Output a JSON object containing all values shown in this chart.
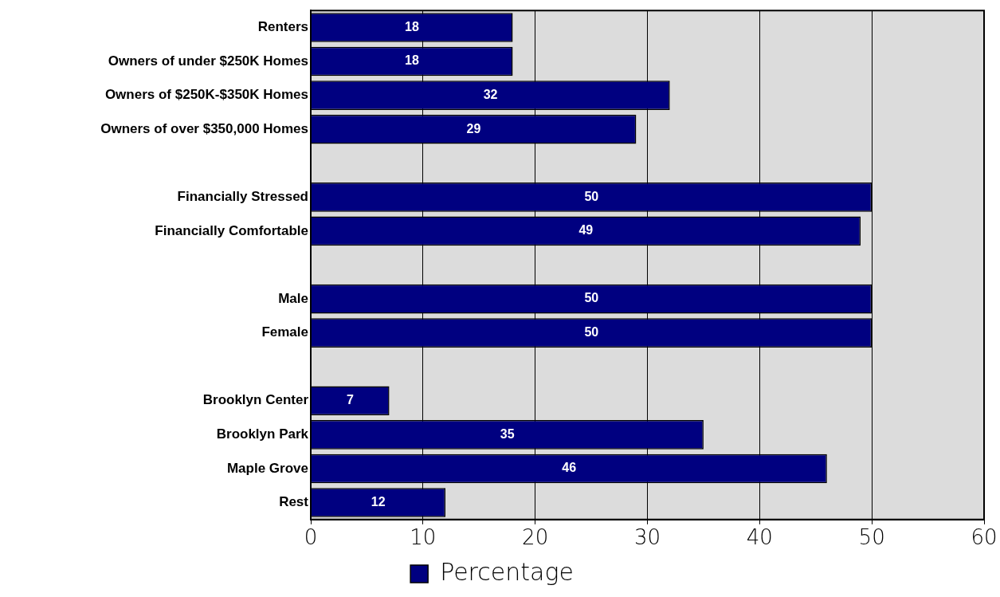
{
  "chart_data": {
    "type": "bar",
    "orientation": "horizontal",
    "categories": [
      "Renters",
      "Owners of under $250K Homes",
      "Owners of $250K-$350K Homes",
      "Owners of over $350,000 Homes",
      null,
      "Financially Stressed",
      "Financially Comfortable",
      null,
      "Male",
      "Female",
      null,
      "Brooklyn Center",
      "Brooklyn Park",
      "Maple Grove",
      "Rest"
    ],
    "series": [
      {
        "name": "Percentage",
        "color": "#000080",
        "values": [
          18,
          18,
          32,
          29,
          null,
          50,
          49,
          null,
          50,
          50,
          null,
          7,
          35,
          46,
          12
        ]
      }
    ],
    "xlim": [
      0,
      60
    ],
    "xticks": [
      0,
      10,
      20,
      30,
      40,
      50,
      60
    ],
    "grid": "x",
    "legend": "bottom",
    "data_labels": true
  }
}
